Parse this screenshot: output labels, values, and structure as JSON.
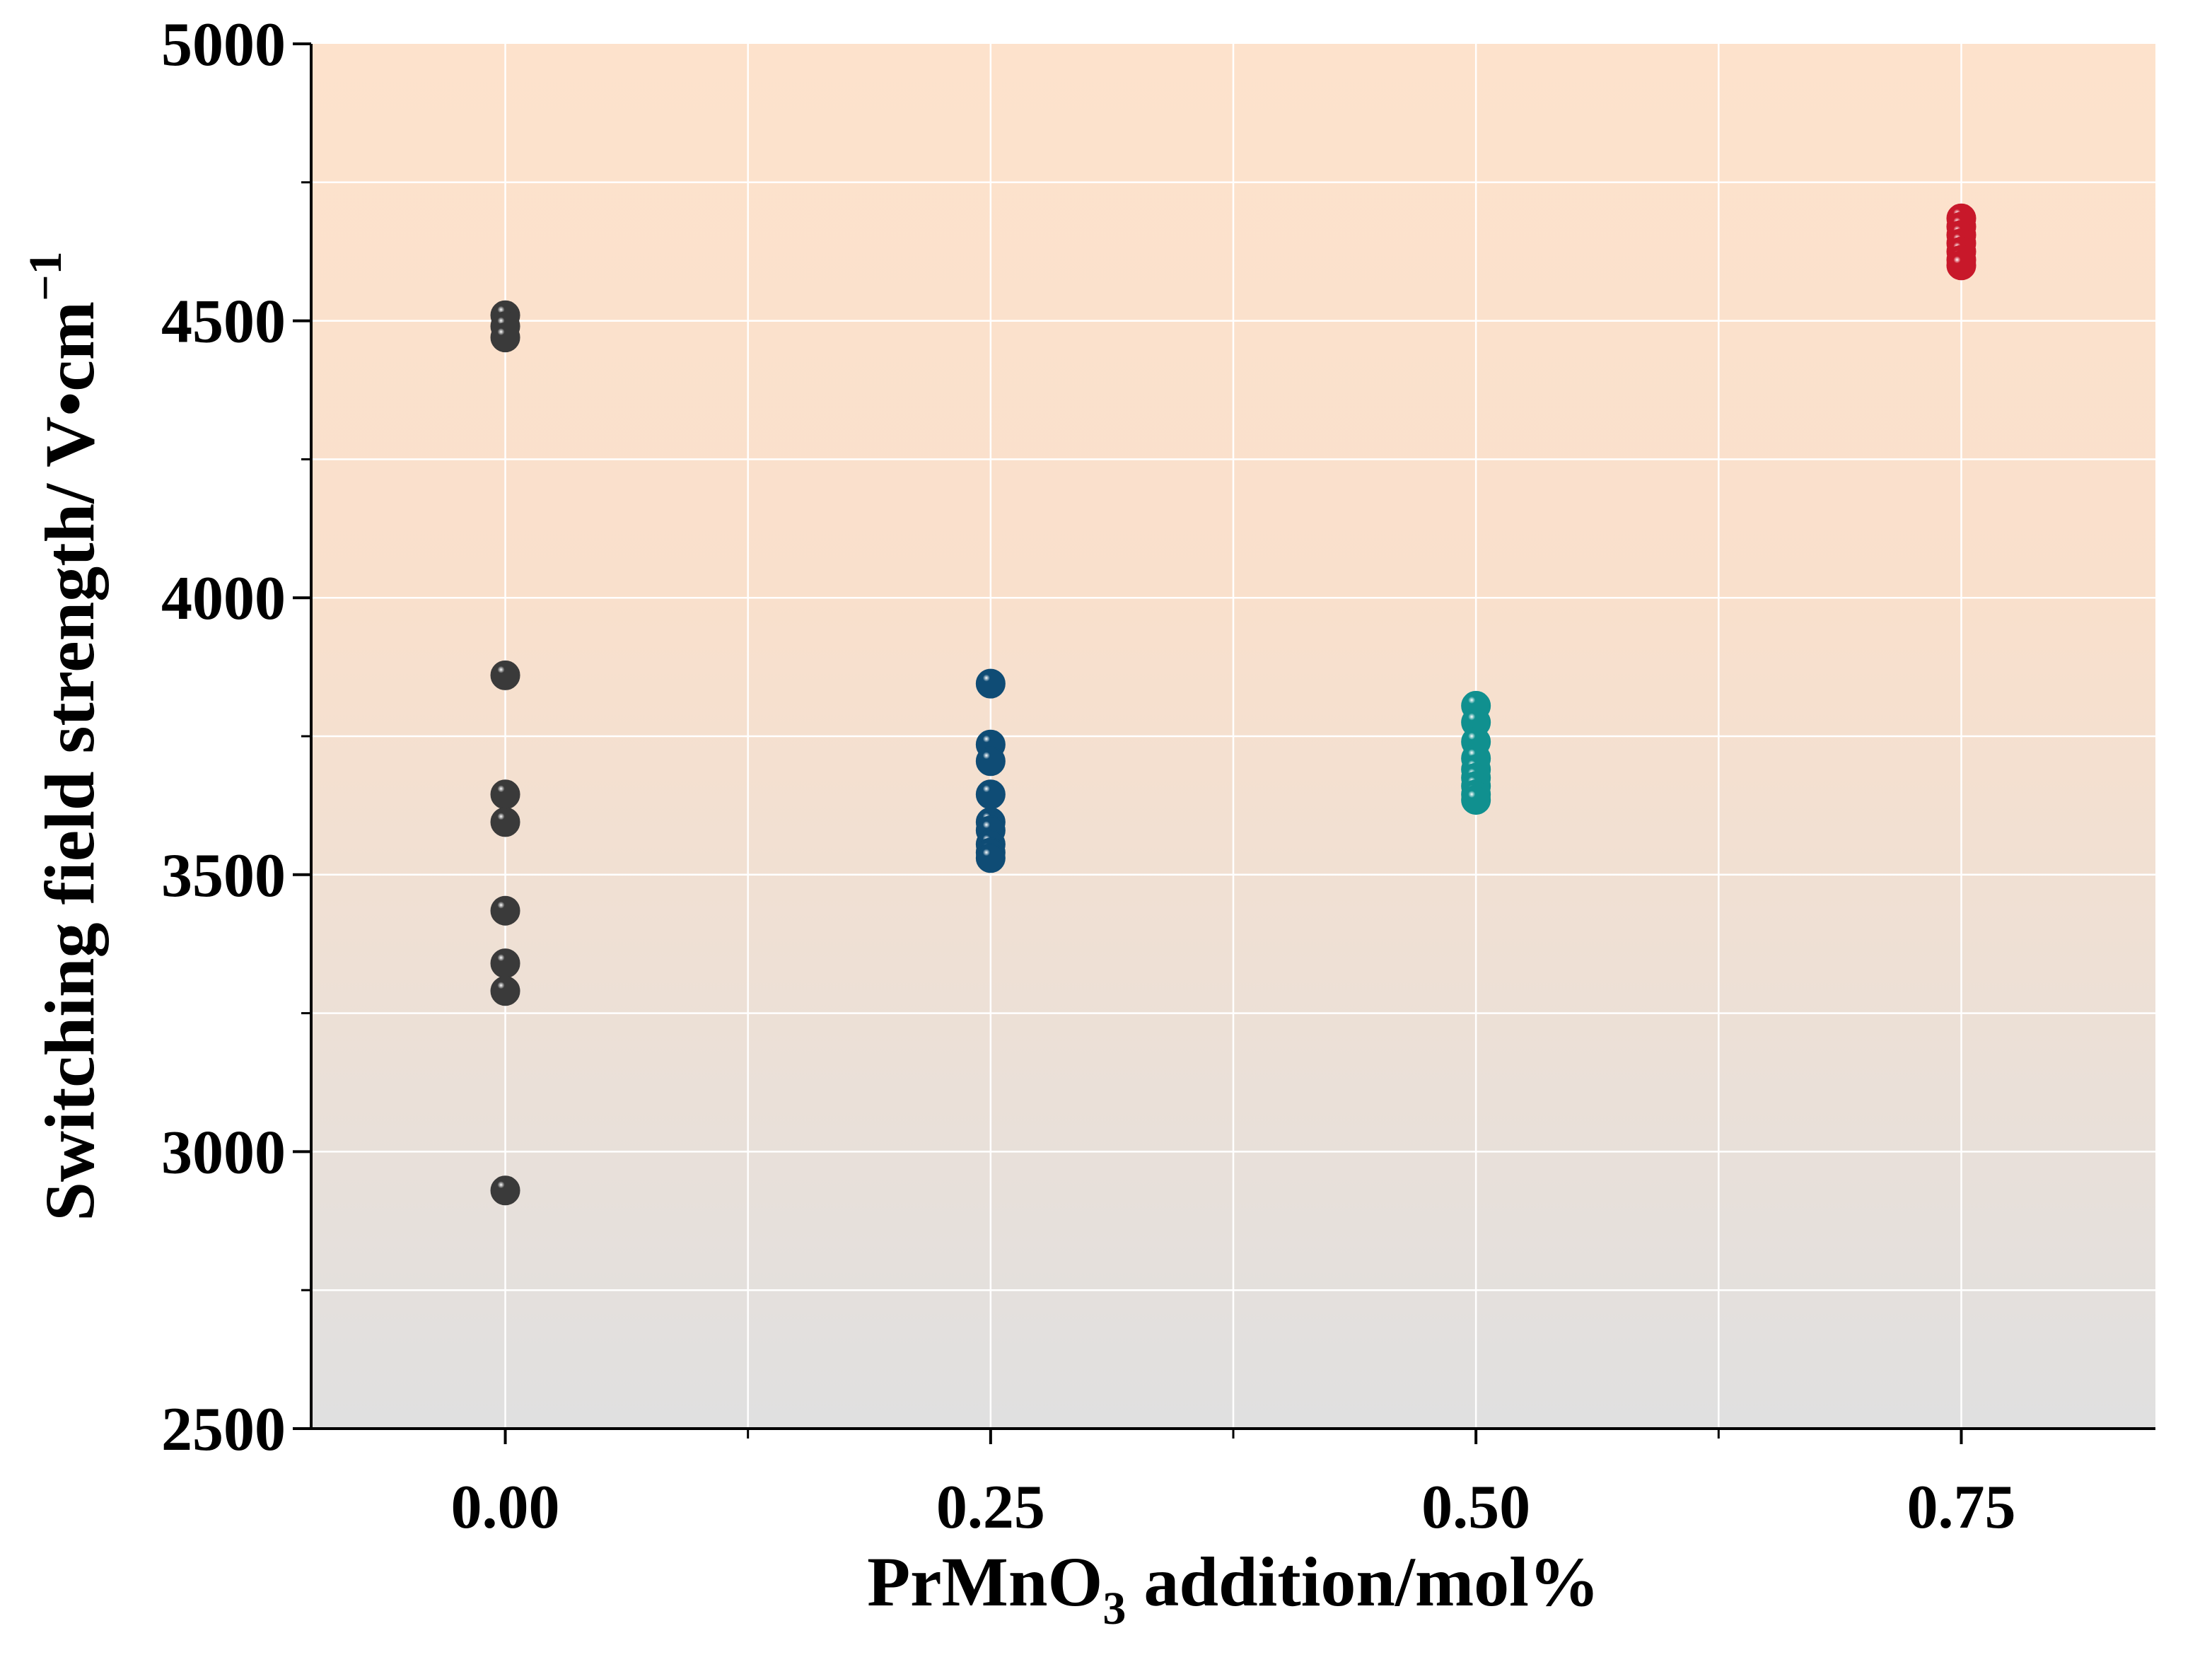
{
  "chart_data": {
    "type": "scatter",
    "title": "",
    "xlabel": {
      "main": "PrMnO",
      "subscript": "3",
      "rest": " addition/mol%"
    },
    "ylabel": {
      "main": "Switching field strength/ V•cm",
      "superscript": "−1"
    },
    "xlim": [
      -0.1,
      0.85
    ],
    "ylim": [
      2500,
      5000
    ],
    "x_ticks": [
      0.0,
      0.25,
      0.5,
      0.75
    ],
    "x_tick_labels": [
      "0.00",
      "0.25",
      "0.50",
      "0.75"
    ],
    "x_minor_ticks": [
      0.125,
      0.375,
      0.625
    ],
    "y_ticks": [
      2500,
      3000,
      3500,
      4000,
      4500,
      5000
    ],
    "y_tick_labels": [
      "2500",
      "3000",
      "3500",
      "4000",
      "4500",
      "5000"
    ],
    "y_minor_ticks": [
      2750,
      3250,
      3750,
      4250,
      4750
    ],
    "grid": true,
    "background_gradient": {
      "top": "#FDE2CC",
      "bottom": "#E0E0E0"
    },
    "series": [
      {
        "name": "0.00 mol%",
        "x": 0.0,
        "color": "#3a3a3a",
        "values": [
          4510,
          4490,
          4470,
          3860,
          3645,
          3595,
          3435,
          3340,
          3290,
          2930
        ]
      },
      {
        "name": "0.25 mol%",
        "x": 0.25,
        "color": "#0f4c75",
        "values": [
          3845,
          3735,
          3705,
          3645,
          3595,
          3580,
          3555,
          3540,
          3530
        ]
      },
      {
        "name": "0.50 mol%",
        "x": 0.5,
        "color": "#10908f",
        "values": [
          3805,
          3775,
          3740,
          3710,
          3690,
          3675,
          3660,
          3645,
          3635
        ]
      },
      {
        "name": "0.75 mol%",
        "x": 0.75,
        "color": "#c8182a",
        "values": [
          4685,
          4670,
          4655,
          4640,
          4625,
          4610,
          4600
        ]
      }
    ]
  }
}
